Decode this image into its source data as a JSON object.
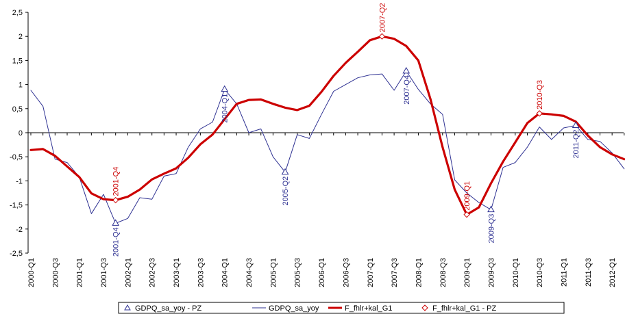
{
  "chart_data": {
    "type": "line",
    "title": "",
    "xlabel": "",
    "ylabel": "",
    "ylim": [
      -2.5,
      2.5
    ],
    "yticks": [
      -2.5,
      -2,
      -1.5,
      -1,
      -0.5,
      0,
      0.5,
      1,
      1.5,
      2,
      2.5
    ],
    "ytick_labels": [
      "-2,5",
      "-2",
      "-1,5",
      "-1",
      "-0,5",
      "0",
      "0,5",
      "1",
      "1,5",
      "2",
      "2,5"
    ],
    "x": [
      "2000-Q1",
      "2000-Q2",
      "2000-Q3",
      "2000-Q4",
      "2001-Q1",
      "2001-Q2",
      "2001-Q3",
      "2001-Q4",
      "2002-Q1",
      "2002-Q2",
      "2002-Q3",
      "2002-Q4",
      "2003-Q1",
      "2003-Q2",
      "2003-Q3",
      "2003-Q4",
      "2004-Q1",
      "2004-Q2",
      "2004-Q3",
      "2004-Q4",
      "2005-Q1",
      "2005-Q2",
      "2005-Q3",
      "2005-Q4",
      "2006-Q1",
      "2006-Q2",
      "2006-Q3",
      "2006-Q4",
      "2007-Q1",
      "2007-Q2",
      "2007-Q3",
      "2007-Q4",
      "2008-Q1",
      "2008-Q2",
      "2008-Q3",
      "2008-Q4",
      "2009-Q1",
      "2009-Q2",
      "2009-Q3",
      "2009-Q4",
      "2010-Q1",
      "2010-Q2",
      "2010-Q3",
      "2010-Q4",
      "2011-Q1",
      "2011-Q2",
      "2011-Q3",
      "2011-Q4",
      "2012-Q1",
      "2012-Q2"
    ],
    "xtick_labels": [
      "2000-Q1",
      "2000-Q3",
      "2001-Q1",
      "2001-Q3",
      "2002-Q1",
      "2002-Q3",
      "2003-Q1",
      "2003-Q3",
      "2004-Q1",
      "2004-Q3",
      "2005-Q1",
      "2005-Q3",
      "2006-Q1",
      "2006-Q3",
      "2007-Q1",
      "2007-Q3",
      "2008-Q1",
      "2008-Q3",
      "2009-Q1",
      "2009-Q3",
      "2010-Q1",
      "2010-Q3",
      "2011-Q1",
      "2011-Q3",
      "2012-Q1"
    ],
    "series": [
      {
        "name": "GDPQ_sa_yoy",
        "color": "#2e3192",
        "values": [
          0.88,
          0.55,
          -0.55,
          -0.62,
          -0.92,
          -1.68,
          -1.28,
          -1.88,
          -1.78,
          -1.35,
          -1.38,
          -0.9,
          -0.85,
          -0.3,
          0.08,
          0.22,
          0.9,
          0.6,
          0.0,
          0.08,
          -0.5,
          -0.82,
          -0.04,
          -0.12,
          0.38,
          0.86,
          1.0,
          1.14,
          1.2,
          1.22,
          0.88,
          1.28,
          0.9,
          0.6,
          0.38,
          -0.98,
          -1.25,
          -1.45,
          -1.6,
          -0.72,
          -0.62,
          -0.3,
          0.12,
          -0.14,
          0.1,
          0.15,
          -0.14,
          -0.18,
          -0.42,
          -0.75
        ]
      },
      {
        "name": "F_fhlr+kal_G1",
        "color": "#cc0000",
        "values": [
          -0.36,
          -0.34,
          -0.48,
          -0.7,
          -0.92,
          -1.26,
          -1.38,
          -1.4,
          -1.33,
          -1.18,
          -0.97,
          -0.85,
          -0.74,
          -0.52,
          -0.24,
          -0.04,
          0.28,
          0.6,
          0.68,
          0.69,
          0.6,
          0.52,
          0.47,
          0.56,
          0.85,
          1.18,
          1.45,
          1.68,
          1.92,
          2.0,
          1.95,
          1.8,
          1.5,
          0.7,
          -0.3,
          -1.18,
          -1.7,
          -1.55,
          -1.05,
          -0.6,
          -0.2,
          0.2,
          0.4,
          0.38,
          0.35,
          0.23,
          -0.06,
          -0.3,
          -0.45,
          -0.55
        ]
      }
    ],
    "annotations": [
      {
        "label": "2001-Q4",
        "series": "F_fhlr+kal_G1",
        "x": "2001-Q4",
        "y": -1.4,
        "position": "above",
        "color": "#cc0000"
      },
      {
        "label": "2001-Q4",
        "series": "GDPQ_sa_yoy",
        "x": "2001-Q4",
        "y": -1.88,
        "position": "below",
        "color": "#2e3192"
      },
      {
        "label": "2004-Q1",
        "series": "GDPQ_sa_yoy",
        "x": "2004-Q1",
        "y": 0.9,
        "position": "below",
        "color": "#2e3192"
      },
      {
        "label": "2005-Q2",
        "series": "GDPQ_sa_yoy",
        "x": "2005-Q2",
        "y": -0.82,
        "position": "below",
        "color": "#2e3192"
      },
      {
        "label": "2007-Q2",
        "series": "F_fhlr+kal_G1",
        "x": "2007-Q2",
        "y": 2.0,
        "position": "above",
        "color": "#cc0000"
      },
      {
        "label": "2007-Q4",
        "series": "GDPQ_sa_yoy",
        "x": "2007-Q4",
        "y": 1.28,
        "position": "below",
        "color": "#2e3192"
      },
      {
        "label": "2009-Q1",
        "series": "F_fhlr+kal_G1",
        "x": "2009-Q1",
        "y": -1.7,
        "position": "above",
        "color": "#cc0000"
      },
      {
        "label": "2009-Q3",
        "series": "GDPQ_sa_yoy",
        "x": "2009-Q3",
        "y": -1.6,
        "position": "below",
        "color": "#2e3192"
      },
      {
        "label": "2010-Q3",
        "series": "F_fhlr+kal_G1",
        "x": "2010-Q3",
        "y": 0.4,
        "position": "above",
        "color": "#cc0000"
      },
      {
        "label": "2011-Q2",
        "series": "GDPQ_sa_yoy",
        "x": "2011-Q2",
        "y": 0.15,
        "position": "below",
        "color": "#2e3192"
      }
    ],
    "legend": {
      "placement": "bottom",
      "entries": [
        {
          "label": "GDPQ_sa_yoy - PZ",
          "marker": "triangle",
          "color": "#2e3192"
        },
        {
          "label": "GDPQ_sa_yoy",
          "marker": "line",
          "color": "#2e3192"
        },
        {
          "label": "F_fhlr+kal_G1",
          "marker": "thick-line",
          "color": "#cc0000"
        },
        {
          "label": "F_fhlr+kal_G1 - PZ",
          "marker": "diamond",
          "color": "#cc0000"
        }
      ]
    },
    "grid": false
  }
}
